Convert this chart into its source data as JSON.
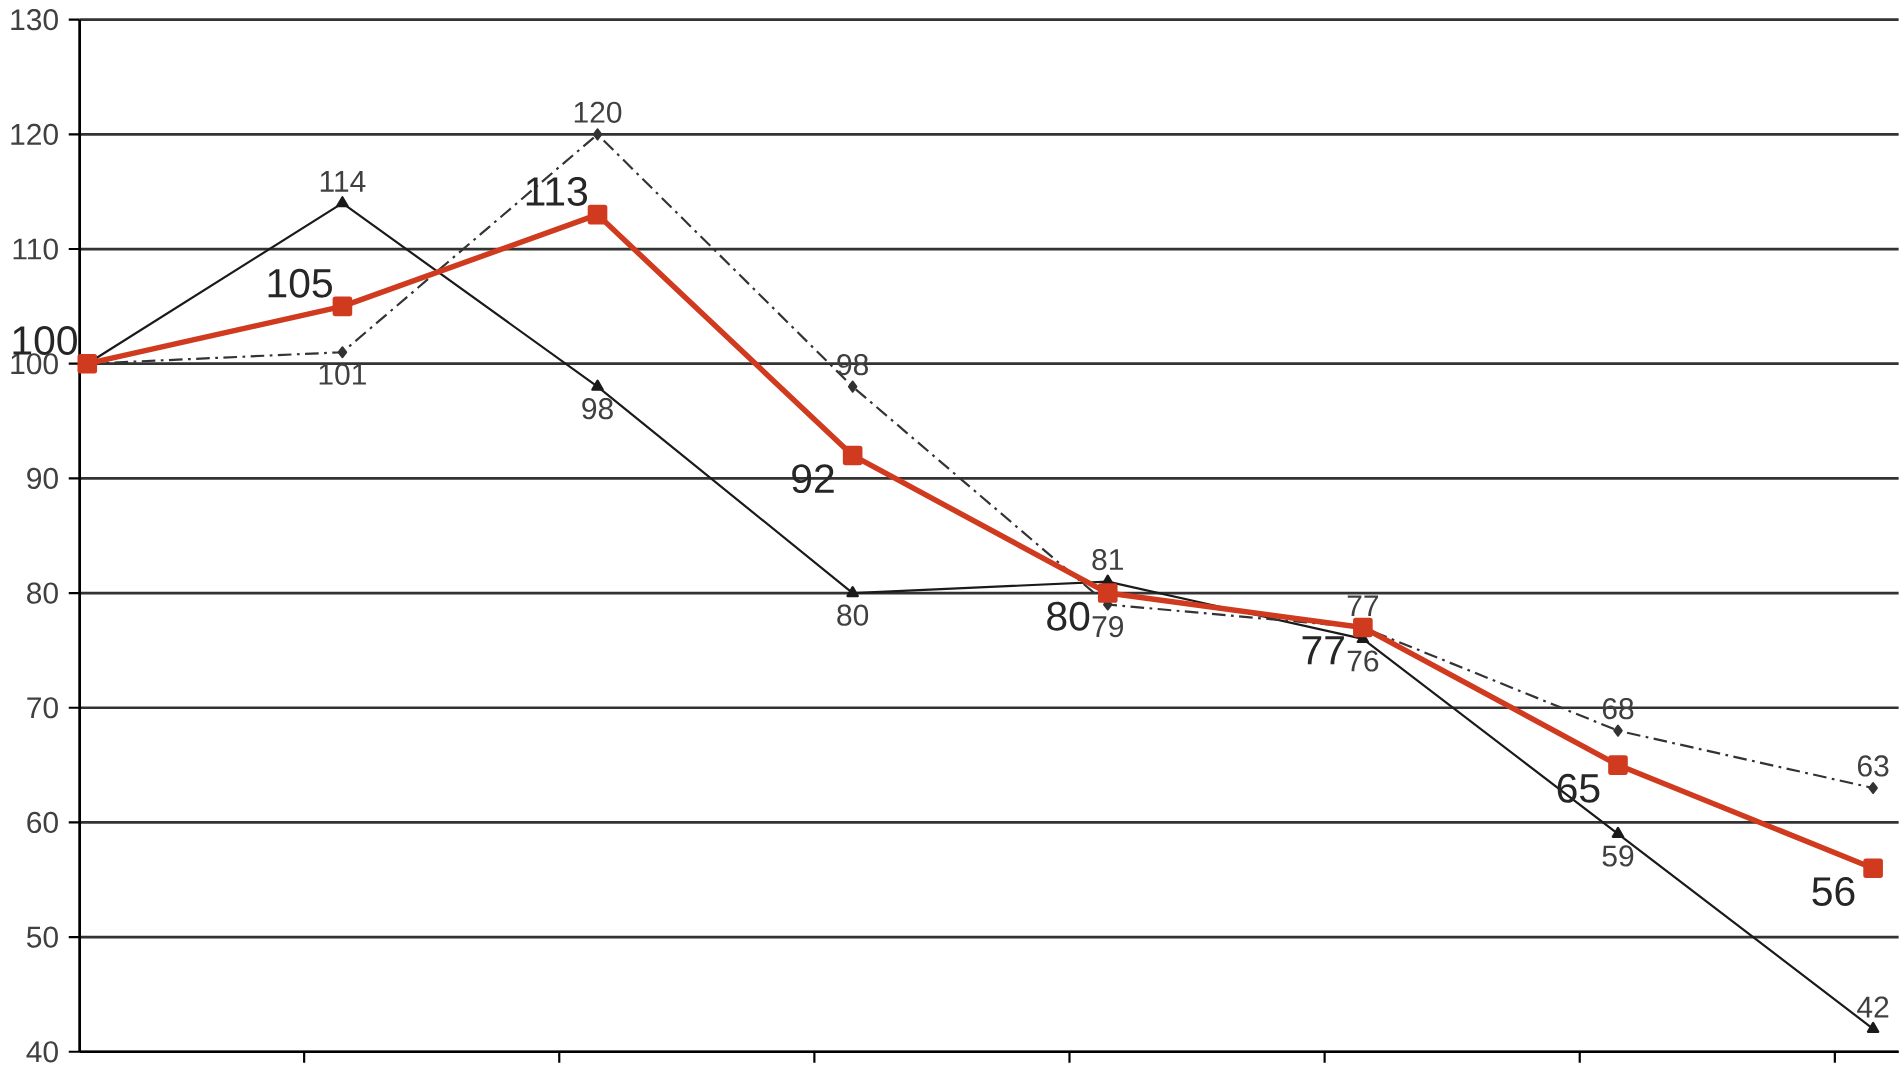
{
  "chart_data": {
    "type": "line",
    "categories": [
      null,
      null,
      null,
      null,
      null,
      null,
      null,
      null
    ],
    "ylim": [
      40,
      130
    ],
    "yticks": [
      40,
      50,
      60,
      70,
      80,
      90,
      100,
      110,
      120,
      130
    ],
    "grid": "y",
    "series": [
      {
        "color": "#1a1a1a",
        "marker": "triangle",
        "line_style": "solid",
        "values": [
          100,
          114,
          98,
          80,
          81,
          76,
          59,
          42
        ],
        "value_labels": [
          null,
          "114",
          "98",
          "80",
          "81",
          "76",
          "59",
          "42"
        ]
      },
      {
        "color": "#333333",
        "marker": "diamond",
        "line_style": "dashed",
        "values": [
          100,
          101,
          120,
          98,
          79,
          77,
          68,
          63
        ],
        "value_labels": [
          null,
          "101",
          "120",
          "98",
          "79",
          "77",
          "68",
          "63"
        ]
      },
      {
        "color": "#d03a1e",
        "marker": "square",
        "line_style": "solid",
        "values": [
          100,
          105,
          113,
          92,
          80,
          77,
          65,
          56
        ],
        "value_labels": [
          "100",
          "105",
          "113",
          "92",
          "80",
          "77",
          "65",
          "56"
        ]
      }
    ]
  }
}
